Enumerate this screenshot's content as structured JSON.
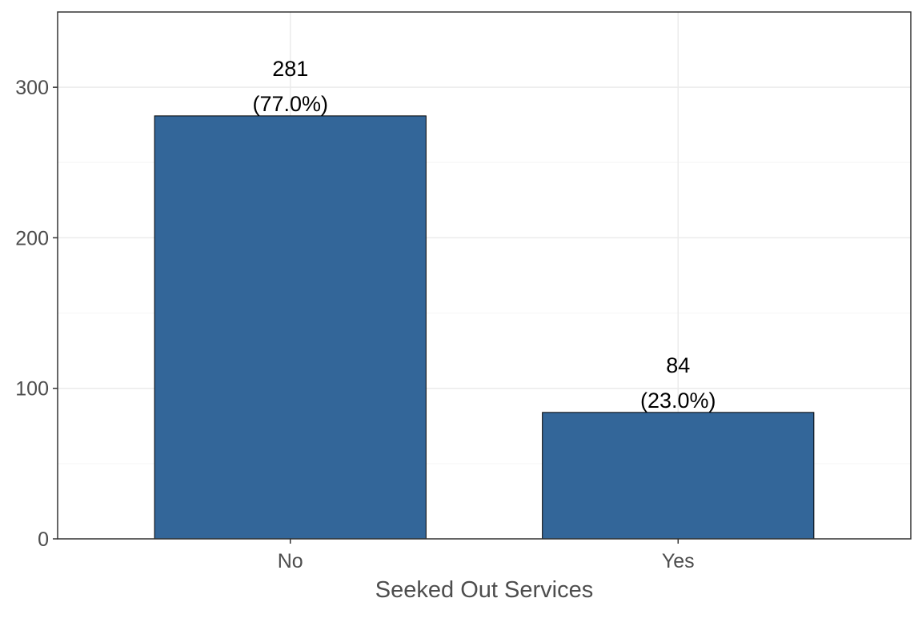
{
  "chart_data": {
    "type": "bar",
    "title": "",
    "xlabel": "Seeked Out Services",
    "ylabel": "",
    "categories": [
      "No",
      "Yes"
    ],
    "values": [
      281,
      84
    ],
    "data_labels": [
      {
        "count": "281",
        "percent": "(77.0%)"
      },
      {
        "count": "84",
        "percent": "(23.0%)"
      }
    ],
    "yticks": [
      0,
      100,
      200,
      300
    ],
    "ylim": [
      0,
      350
    ],
    "grid": true,
    "legend": "none",
    "colors": {
      "bar_fill": "#336699",
      "bar_stroke": "#000000",
      "grid_major": "#ebebeb",
      "grid_minor": "#f5f5f5",
      "panel_border": "#333333",
      "tick_text": "#4d4d4d",
      "label_text": "#000000"
    }
  }
}
